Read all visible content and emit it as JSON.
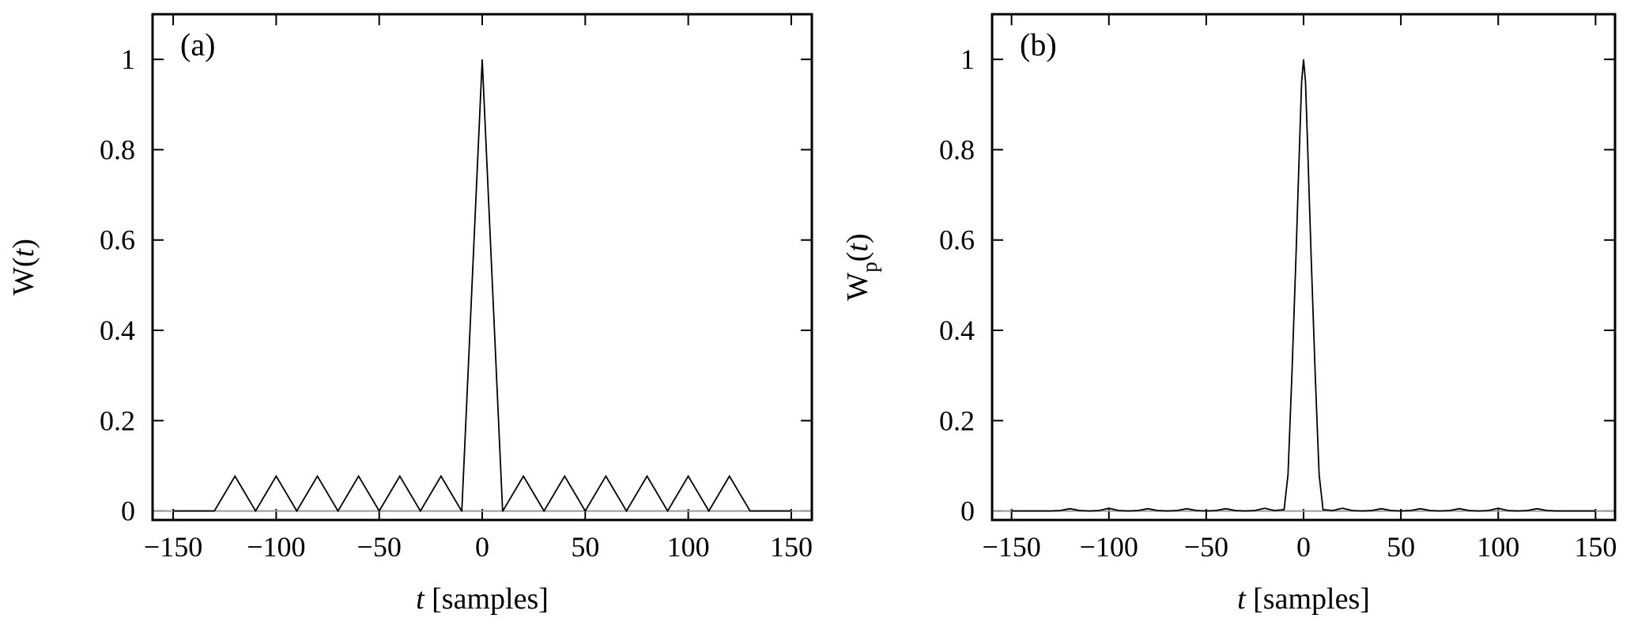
{
  "chart_data": [
    {
      "type": "line",
      "panel_label": "(a)",
      "xlabel": {
        "var": "t",
        "rest": " [samples]"
      },
      "ylabel": {
        "base": "W(",
        "var": "t",
        "close": ")"
      },
      "xlim": [
        -160,
        160
      ],
      "ylim": [
        -0.02,
        1.1
      ],
      "xticks": [
        -150,
        -100,
        -50,
        0,
        50,
        100,
        150
      ],
      "xtick_labels": [
        "−150",
        "−100",
        "−50",
        "0",
        "50",
        "100",
        "150"
      ],
      "yticks": [
        0,
        0.2,
        0.4,
        0.6,
        0.8,
        1
      ],
      "ytick_labels": [
        "0",
        "0.2",
        "0.4",
        "0.6",
        "0.8",
        "1"
      ],
      "zero_line": true,
      "series": [
        {
          "x": [
            -150,
            -130,
            -120,
            -110,
            -100,
            -90,
            -80,
            -70,
            -60,
            -50,
            -40,
            -30,
            -20,
            -10,
            -9.9,
            0,
            9.9,
            10,
            20,
            30,
            40,
            50,
            60,
            70,
            80,
            90,
            100,
            110,
            120,
            130,
            150
          ],
          "y": [
            0,
            0,
            0.077,
            0,
            0.077,
            0,
            0.077,
            0,
            0.077,
            0,
            0.077,
            0,
            0.077,
            0,
            0,
            1,
            0,
            0,
            0.077,
            0,
            0.077,
            0,
            0.077,
            0,
            0.077,
            0,
            0.077,
            0,
            0.077,
            0,
            0
          ]
        }
      ]
    },
    {
      "type": "line",
      "panel_label": "(b)",
      "xlabel": {
        "var": "t",
        "rest": " [samples]"
      },
      "ylabel": {
        "base": "W",
        "sub": "p",
        "open": "(",
        "var": "t",
        "close": ")"
      },
      "xlim": [
        -160,
        160
      ],
      "ylim": [
        -0.02,
        1.1
      ],
      "xticks": [
        -150,
        -100,
        -50,
        0,
        50,
        100,
        150
      ],
      "xtick_labels": [
        "−150",
        "−100",
        "−50",
        "0",
        "50",
        "100",
        "150"
      ],
      "yticks": [
        0,
        0.2,
        0.4,
        0.6,
        0.8,
        1
      ],
      "ytick_labels": [
        "0",
        "0.2",
        "0.4",
        "0.6",
        "0.8",
        "1"
      ],
      "zero_line": true,
      "series": [
        {
          "x": [
            -150,
            -130,
            -125,
            -120,
            -115,
            -110,
            -105,
            -100,
            -95,
            -90,
            -85,
            -80,
            -75,
            -70,
            -65,
            -60,
            -55,
            -50,
            -45,
            -40,
            -35,
            -30,
            -25,
            -20,
            -15,
            -10,
            -8,
            -6,
            -4,
            -2,
            -1,
            0,
            1,
            2,
            4,
            6,
            8,
            10,
            15,
            20,
            25,
            30,
            35,
            40,
            45,
            50,
            55,
            60,
            65,
            70,
            75,
            80,
            85,
            90,
            95,
            100,
            105,
            110,
            115,
            120,
            125,
            130,
            150
          ],
          "y": [
            0,
            0,
            0.001,
            0.005,
            0.001,
            0,
            0.001,
            0.006,
            0.001,
            0,
            0.001,
            0.005,
            0.001,
            0,
            0.001,
            0.005,
            0.001,
            0,
            0.001,
            0.005,
            0.001,
            0,
            0.001,
            0.006,
            0.001,
            0.003,
            0.08,
            0.3,
            0.55,
            0.82,
            0.95,
            1,
            0.95,
            0.82,
            0.55,
            0.3,
            0.08,
            0.003,
            0.001,
            0.006,
            0.001,
            0,
            0.001,
            0.005,
            0.001,
            0,
            0.001,
            0.005,
            0.001,
            0,
            0.001,
            0.005,
            0.001,
            0,
            0.001,
            0.006,
            0.001,
            0,
            0.001,
            0.005,
            0.001,
            0,
            0
          ]
        }
      ]
    }
  ]
}
